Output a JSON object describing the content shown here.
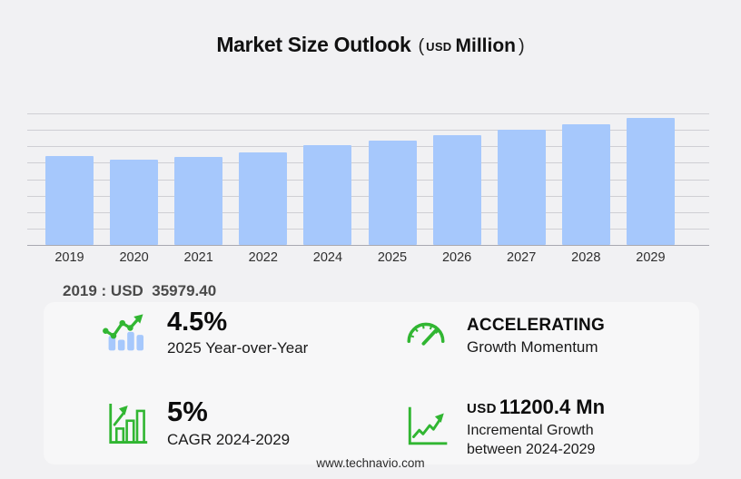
{
  "title": {
    "main": "Market Size Outlook",
    "paren_open": "(",
    "unit_small": "USD",
    "unit_large": "Million",
    "paren_close": ")"
  },
  "chart_data": {
    "type": "bar",
    "title": "Market Size Outlook (USD Million)",
    "categories": [
      "2019",
      "2020",
      "2021",
      "2022",
      "2024",
      "2025",
      "2026",
      "2027",
      "2028",
      "2029"
    ],
    "values": [
      35979.4,
      34500,
      35900,
      37450,
      40540,
      42360,
      44500,
      46800,
      48900,
      51740
    ],
    "xlabel": "",
    "ylabel": "USD Million",
    "ylim": [
      0,
      53400
    ],
    "grid": true,
    "legend": false,
    "bar_color": "#a6c8fc",
    "labeled_point": {
      "category": "2019",
      "label": "2019 : USD  35979.40",
      "value": 35979.4
    }
  },
  "base_value_label": "2019 : USD  35979.40",
  "stats": [
    {
      "id": "yoy",
      "icon": "bar-line-growth-icon",
      "value": "4.5%",
      "label": "2025 Year-over-Year"
    },
    {
      "id": "momentum",
      "icon": "gauge-icon",
      "value": "ACCELERATING",
      "label": "Growth Momentum"
    },
    {
      "id": "cagr",
      "icon": "boxed-bar-chart-icon",
      "value": "5%",
      "label": "CAGR 2024-2029"
    },
    {
      "id": "incremental",
      "icon": "line-chart-arrow-icon",
      "value_prefix": "USD",
      "value": "11200.4 Mn",
      "label_line1": "Incremental Growth",
      "label_line2": "between 2024-2029"
    }
  ],
  "footer": {
    "url": "www.technavio.com"
  },
  "colors": {
    "background": "#f1f1f3",
    "bar_blue": "#a6c8fc",
    "accent_green": "#31b632",
    "grid_line": "#cfcfd4",
    "axis_line": "#a9a9b0",
    "title_text": "#111111",
    "muted_text": "#4a4a4a"
  }
}
